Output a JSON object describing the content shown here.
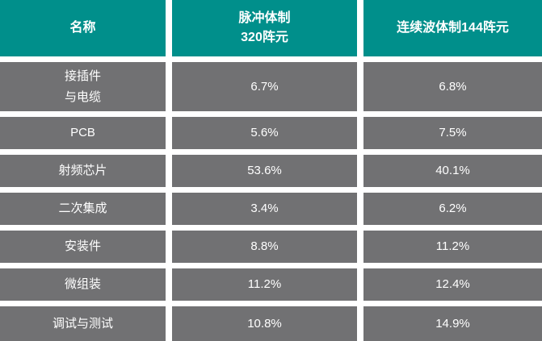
{
  "chart_data": {
    "type": "table",
    "columns": [
      "名称",
      "脉冲体制320阵元",
      "连续波体制144阵元"
    ],
    "rows": [
      [
        "接插件与电缆",
        "6.7%",
        "6.8%"
      ],
      [
        "PCB",
        "5.6%",
        "7.5%"
      ],
      [
        "射频芯片",
        "53.6%",
        "40.1%"
      ],
      [
        "二次集成",
        "3.4%",
        "6.2%"
      ],
      [
        "安装件",
        "8.8%",
        "11.2%"
      ],
      [
        "微组装",
        "11.2%",
        "12.4%"
      ],
      [
        "调试与测试",
        "10.8%",
        "14.9%"
      ]
    ]
  },
  "header_display": {
    "col1": "名称",
    "col2_line1": "脉冲体制",
    "col2_line2": "320阵元",
    "col3": "连续波体制144阵元"
  },
  "row0_name_lines": [
    "接插件",
    "与电缆"
  ],
  "colors": {
    "header_bg": "#008F8B",
    "row_bg": "#717173",
    "gap_bg": "#FFFFFF",
    "text": "#FFFFFF"
  }
}
